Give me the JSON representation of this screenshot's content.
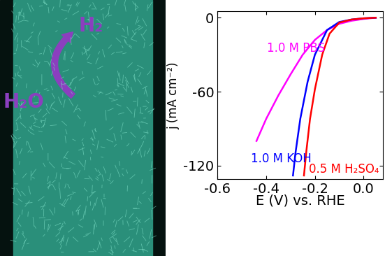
{
  "illustration": {
    "labels": [
      "H₂",
      "H₂O"
    ]
  },
  "chart_data": {
    "type": "line",
    "xlabel": "E (V) vs. RHE",
    "ylabel": "j (mA cm⁻²)",
    "xlim": [
      -0.6,
      0.08
    ],
    "ylim": [
      -131,
      5
    ],
    "xticks": [
      -0.6,
      -0.4,
      -0.2,
      0.0
    ],
    "yticks": [
      0,
      -60,
      -120
    ],
    "series": [
      {
        "name": "1.0 M PBS",
        "color": "#ff00ff",
        "x": [
          0.05,
          0.0,
          -0.05,
          -0.1,
          -0.15,
          -0.2,
          -0.25,
          -0.3,
          -0.35,
          -0.4,
          -0.44
        ],
        "values": [
          0,
          -1,
          -2.5,
          -5,
          -10,
          -18,
          -30,
          -46,
          -63,
          -82,
          -100
        ]
      },
      {
        "name": "1.0 M KOH",
        "color": "#0000ff",
        "x": [
          0.05,
          0.0,
          -0.05,
          -0.1,
          -0.15,
          -0.2,
          -0.23,
          -0.26,
          -0.28,
          -0.29
        ],
        "values": [
          0,
          -0.5,
          -1.5,
          -3.5,
          -10,
          -30,
          -52,
          -82,
          -110,
          -128
        ]
      },
      {
        "name": "0.5 M H₂SO₄",
        "color": "#ff0000",
        "x": [
          0.05,
          0.0,
          -0.05,
          -0.1,
          -0.14,
          -0.17,
          -0.2,
          -0.22,
          -0.235,
          -0.245
        ],
        "values": [
          0,
          -0.5,
          -1.5,
          -4,
          -13,
          -30,
          -58,
          -82,
          -108,
          -128
        ]
      }
    ]
  }
}
